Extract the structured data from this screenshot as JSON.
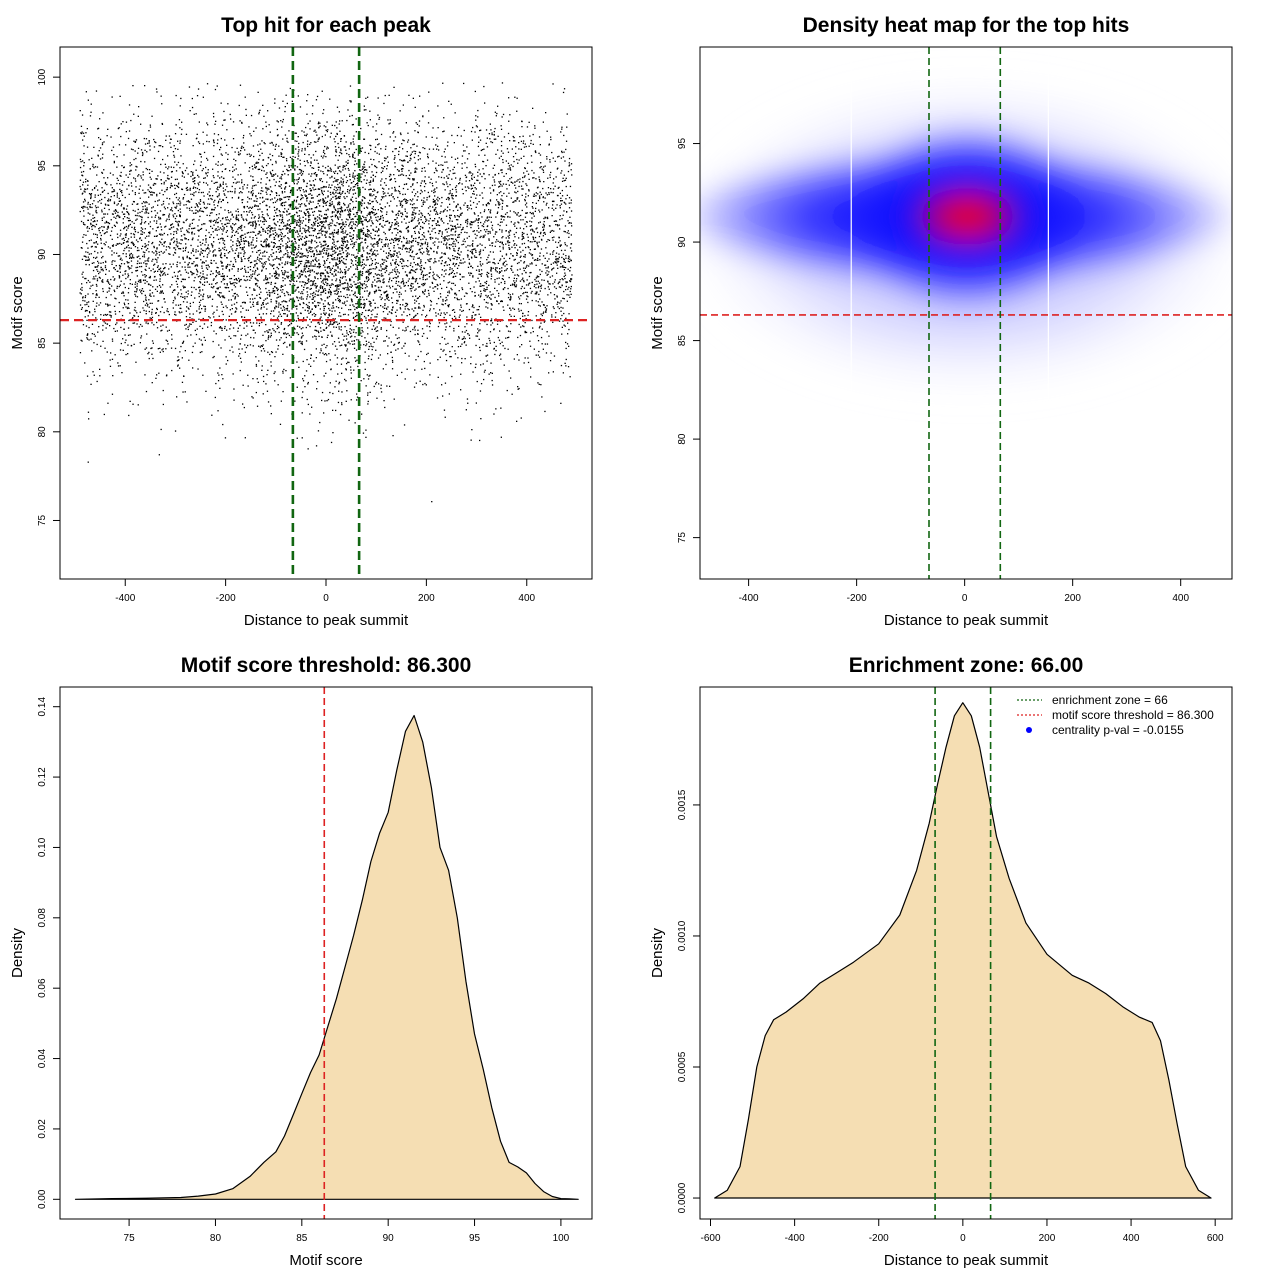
{
  "chart_data": [
    {
      "type": "scatter",
      "title": "Top hit for each peak",
      "xlabel": "Distance to peak summit",
      "ylabel": "Motif score",
      "xlim": [
        -530,
        530
      ],
      "ylim": [
        71.7,
        101.7
      ],
      "xticks": [
        "-400",
        "-200",
        "0",
        "200",
        "400"
      ],
      "yticks": [
        "75",
        "80",
        "85",
        "90",
        "95",
        "100"
      ],
      "xtick_values": [
        -400,
        -200,
        0,
        200,
        400
      ],
      "ytick_values": [
        75,
        80,
        85,
        90,
        95,
        100
      ],
      "point_cloud": {
        "x_range": [
          -490,
          490
        ],
        "y_center": 90.6,
        "y_spread": 3.6,
        "central_cluster_x_spread": 90,
        "approx_points": 9000
      },
      "threshold_line": {
        "axis": "y",
        "value": 86.3,
        "color": "#dd2222"
      },
      "zone_lines": {
        "axis": "x",
        "values": [
          -66,
          66
        ],
        "color": "#116611"
      },
      "grid": false
    },
    {
      "type": "heatmap",
      "title": "Density heat map for the top hits",
      "xlabel": "Distance to peak summit",
      "ylabel": "Motif score",
      "xlim": [
        -490,
        495
      ],
      "ylim": [
        72.9,
        99.9
      ],
      "xticks": [
        "-400",
        "-200",
        "0",
        "200",
        "400"
      ],
      "yticks": [
        "75",
        "80",
        "85",
        "90",
        "95"
      ],
      "xtick_values": [
        -400,
        -200,
        0,
        200,
        400
      ],
      "ytick_values": [
        75,
        80,
        85,
        90,
        95
      ],
      "peak": {
        "x": 5,
        "y": 91.3
      },
      "colors": [
        "#ffffff",
        "#0000ff",
        "#ff0000"
      ],
      "threshold_line": {
        "axis": "y",
        "value": 86.3,
        "color": "#dd2222"
      },
      "zone_lines": {
        "axis": "x",
        "values": [
          -66,
          66
        ],
        "color": "#116611"
      },
      "grid": false
    },
    {
      "type": "area",
      "title": "Motif score threshold: 86.300",
      "xlabel": "Motif score",
      "ylabel": "Density",
      "xlim": [
        71,
        101.8
      ],
      "ylim": [
        -0.0056,
        0.1456
      ],
      "xticks": [
        "75",
        "80",
        "85",
        "90",
        "95",
        "100"
      ],
      "yticks": [
        "0.00",
        "0.02",
        "0.04",
        "0.06",
        "0.08",
        "0.10",
        "0.12",
        "0.14"
      ],
      "xtick_values": [
        75,
        80,
        85,
        90,
        95,
        100
      ],
      "ytick_values": [
        0,
        0.02,
        0.04,
        0.06,
        0.08,
        0.1,
        0.12,
        0.14
      ],
      "x": [
        71.9,
        74,
        76,
        78,
        79,
        80,
        81,
        82,
        82.8,
        83.5,
        84,
        84.5,
        85,
        85.5,
        86,
        86.5,
        87,
        87.5,
        88,
        88.5,
        89,
        89.5,
        90,
        90.5,
        91,
        91.5,
        92,
        92.5,
        93,
        93.5,
        94,
        94.5,
        95,
        95.5,
        96,
        96.5,
        97,
        97.5,
        98,
        98.5,
        99,
        99.5,
        100,
        100.5,
        101
      ],
      "y": [
        0,
        0.0002,
        0.0003,
        0.0005,
        0.0009,
        0.0015,
        0.003,
        0.0065,
        0.0105,
        0.0135,
        0.018,
        0.024,
        0.03,
        0.036,
        0.041,
        0.049,
        0.057,
        0.066,
        0.075,
        0.085,
        0.096,
        0.104,
        0.11,
        0.122,
        0.133,
        0.1375,
        0.13,
        0.117,
        0.1,
        0.0935,
        0.08,
        0.062,
        0.047,
        0.037,
        0.026,
        0.0165,
        0.0105,
        0.0092,
        0.0075,
        0.0045,
        0.0022,
        0.0008,
        0.0002,
        0.0001,
        0
      ],
      "fill": "#f5deb3",
      "threshold_line": {
        "axis": "x",
        "value": 86.3,
        "color": "#dd2222"
      },
      "grid": false
    },
    {
      "type": "area",
      "title": "Enrichment zone: 66.00",
      "xlabel": "Distance to peak summit",
      "ylabel": "Density",
      "xlim": [
        -625,
        640
      ],
      "ylim": [
        -8e-05,
        0.00195
      ],
      "xticks": [
        "-600",
        "-400",
        "-200",
        "0",
        "200",
        "400",
        "600"
      ],
      "yticks": [
        "0.0000",
        "0.0005",
        "0.0010",
        "0.0015"
      ],
      "xtick_values": [
        -600,
        -400,
        -200,
        0,
        200,
        400,
        600
      ],
      "ytick_values": [
        0,
        0.0005,
        0.001,
        0.0015
      ],
      "x": [
        -590,
        -560,
        -530,
        -510,
        -490,
        -470,
        -450,
        -420,
        -380,
        -340,
        -300,
        -260,
        -200,
        -150,
        -110,
        -80,
        -60,
        -40,
        -20,
        0,
        20,
        40,
        60,
        80,
        110,
        150,
        200,
        260,
        300,
        340,
        380,
        420,
        450,
        470,
        490,
        510,
        530,
        560,
        590
      ],
      "y": [
        0,
        3e-05,
        0.00012,
        0.0003,
        0.0005,
        0.00062,
        0.00068,
        0.00071,
        0.00076,
        0.00082,
        0.00086,
        0.0009,
        0.00097,
        0.00108,
        0.00125,
        0.00143,
        0.00158,
        0.00172,
        0.00184,
        0.00189,
        0.00184,
        0.00172,
        0.00155,
        0.00138,
        0.00122,
        0.00105,
        0.00093,
        0.00085,
        0.00082,
        0.00078,
        0.00073,
        0.00069,
        0.00067,
        0.0006,
        0.00045,
        0.00028,
        0.00012,
        3e-05,
        0
      ],
      "fill": "#f5deb3",
      "zone_lines": {
        "axis": "x",
        "values": [
          -66,
          66
        ],
        "color": "#116611"
      },
      "legend": {
        "position": "top-right",
        "entries": [
          {
            "label": "enrichment zone = 66",
            "color": "#116611",
            "symbol": "dotted-line"
          },
          {
            "label": "motif score threshold = 86.300",
            "color": "#dd2222",
            "symbol": "dotted-line"
          },
          {
            "label": "centrality p-val = -0.0155",
            "color": "#0000ff",
            "symbol": "dot"
          }
        ]
      },
      "grid": false
    }
  ]
}
